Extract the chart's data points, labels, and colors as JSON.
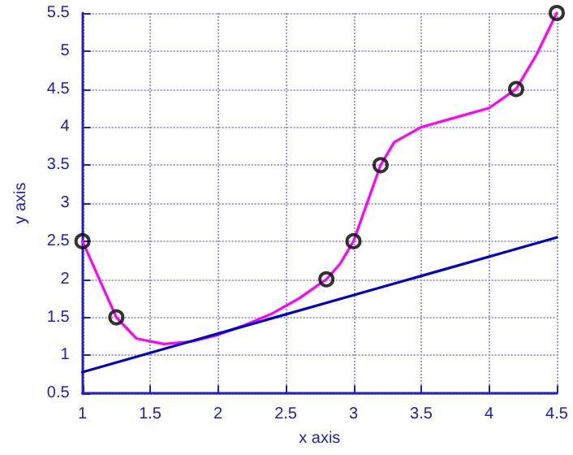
{
  "chart_data": {
    "type": "line",
    "xlabel": "x axis",
    "ylabel": "y axis",
    "xlim": [
      1,
      4.5
    ],
    "xticks": [
      1,
      1.5,
      2,
      2.5,
      3,
      3.5,
      4,
      4.5
    ],
    "ylim": [
      0.5,
      5.5
    ],
    "yticks": [
      0.5,
      1,
      1.5,
      2,
      2.5,
      3,
      3.5,
      4,
      4.5,
      5,
      5.5
    ],
    "grid": true,
    "series": [
      {
        "color": "#ff00ff",
        "marker": "none",
        "line_style": "solid",
        "x": [
          1,
          1.25,
          1.4,
          1.6,
          1.8,
          2,
          2.2,
          2.4,
          2.6,
          2.8,
          2.9,
          3,
          3.1,
          3.2,
          3.3,
          3.5,
          3.8,
          4,
          4.2,
          4.35,
          4.5
        ],
        "values": [
          2.5,
          1.5,
          1.22,
          1.15,
          1.18,
          1.27,
          1.4,
          1.55,
          1.75,
          2,
          2.2,
          2.5,
          3,
          3.5,
          3.8,
          4,
          4.15,
          4.25,
          4.5,
          4.95,
          5.5
        ]
      },
      {
        "color": "#0000cc",
        "marker": "none",
        "line_style": "solid",
        "x": [
          1,
          4.5
        ],
        "values": [
          0.78,
          2.55
        ]
      },
      {
        "type": "scatter",
        "color": "#000000",
        "marker": "circle",
        "x": [
          1,
          1.25,
          2.8,
          3,
          3.2,
          4.2,
          4.5
        ],
        "values": [
          2.5,
          1.5,
          2,
          2.5,
          3.5,
          4.5,
          5.5
        ]
      }
    ]
  }
}
